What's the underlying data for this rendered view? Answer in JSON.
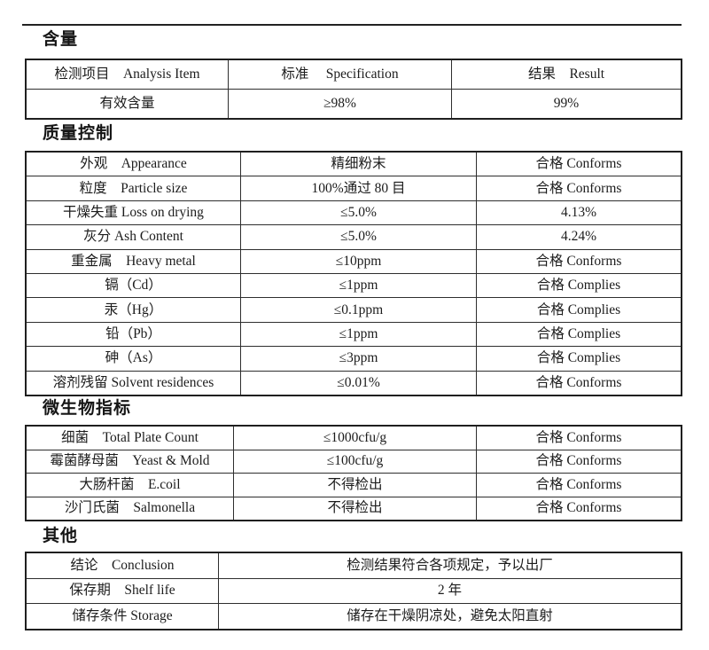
{
  "colors": {
    "background": "#ffffff",
    "text": "#1c1c1c",
    "border": "#2e2e2e",
    "rule": "#222222"
  },
  "sections": [
    {
      "heading": "含量",
      "rows": [
        {
          "header": true,
          "cells": [
            "检测项目　Analysis Item",
            "标准　 Specification",
            "结果　Result"
          ]
        },
        {
          "cells": [
            "有效含量",
            "≥98%",
            "99%"
          ]
        }
      ]
    },
    {
      "heading": "质量控制",
      "rows": [
        {
          "cells": [
            "外观　Appearance",
            "精细粉末",
            "合格 Conforms"
          ]
        },
        {
          "cells": [
            "粒度　Particle size",
            "100%通过 80 目",
            "合格 Conforms"
          ]
        },
        {
          "cells": [
            "干燥失重 Loss on drying",
            "≤5.0%",
            "4.13%"
          ]
        },
        {
          "cells": [
            "灰分 Ash Content",
            "≤5.0%",
            "4.24%"
          ]
        },
        {
          "cells": [
            "重金属　Heavy metal",
            "≤10ppm",
            "合格 Conforms"
          ]
        },
        {
          "cells": [
            "镉（Cd）",
            "≤1ppm",
            "合格 Complies"
          ]
        },
        {
          "cells": [
            "汞（Hg）",
            "≤0.1ppm",
            "合格 Complies"
          ]
        },
        {
          "cells": [
            "铅（Pb）",
            "≤1ppm",
            "合格 Complies"
          ]
        },
        {
          "cells": [
            "砷（As）",
            "≤3ppm",
            "合格 Complies"
          ]
        },
        {
          "cells": [
            "溶剂残留 Solvent residences",
            "≤0.01%",
            "合格 Conforms"
          ]
        }
      ]
    },
    {
      "heading": "微生物指标",
      "rows": [
        {
          "cells": [
            "细菌　Total Plate Count",
            "≤1000cfu/g",
            "合格 Conforms"
          ]
        },
        {
          "cells": [
            "霉菌酵母菌　Yeast & Mold",
            "≤100cfu/g",
            "合格 Conforms"
          ]
        },
        {
          "cells": [
            "大肠杆菌　E.coil",
            "不得检出",
            "合格 Conforms"
          ]
        },
        {
          "cells": [
            "沙门氏菌　Salmonella",
            "不得检出",
            "合格 Conforms"
          ]
        }
      ]
    },
    {
      "heading": "其他",
      "rows": [
        {
          "cells": [
            "结论　Conclusion",
            "检测结果符合各项规定，予以出厂"
          ]
        },
        {
          "cells": [
            "保存期　Shelf life",
            "2 年"
          ]
        },
        {
          "cells": [
            "储存条件 Storage",
            "储存在干燥阴凉处，避免太阳直射"
          ]
        }
      ]
    }
  ]
}
